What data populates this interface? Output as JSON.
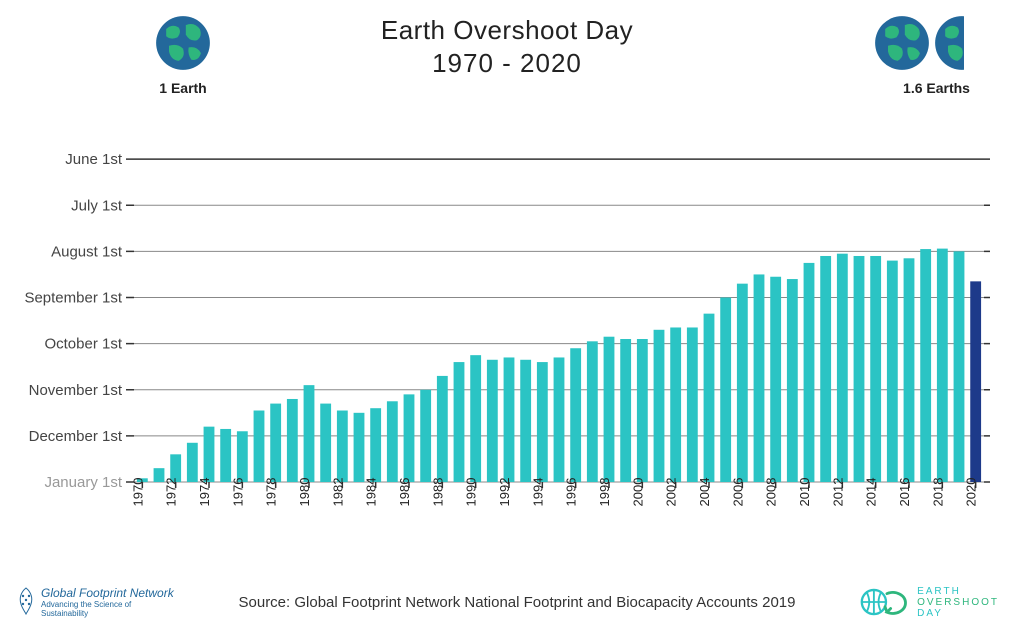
{
  "title": {
    "line1": "Earth Overshoot Day",
    "line2": "1970 - 2020"
  },
  "earthLabels": {
    "left": "1 Earth",
    "right": "1.6 Earths"
  },
  "source": "Source: Global Footprint Network National Footprint and Biocapacity Accounts 2019",
  "logoLeft": {
    "brand": "Global Footprint Network",
    "tag": "Advancing the Science of Sustainability"
  },
  "logoRight": {
    "l1": "EARTH",
    "l2": "OVERSHOOT",
    "l3": "DAY"
  },
  "chart": {
    "type": "bar",
    "background_color": "#ffffff",
    "grid_color": "#888888",
    "top_border_color": "#333333",
    "bar_color": "#2bc4c4",
    "bar_highlight_color": "#1d3a8a",
    "bar_width_ratio": 0.65,
    "y_axis": {
      "min": 0,
      "max": 8,
      "labels": [
        {
          "v": 0,
          "text": "January 1st"
        },
        {
          "v": 1,
          "text": "December 1st"
        },
        {
          "v": 2,
          "text": "November 1st"
        },
        {
          "v": 3,
          "text": "October 1st"
        },
        {
          "v": 4,
          "text": "September 1st"
        },
        {
          "v": 5,
          "text": "August 1st"
        },
        {
          "v": 6,
          "text": "July 1st"
        },
        {
          "v": 7,
          "text": "June 1st"
        }
      ],
      "label_fontsize": 15,
      "last_label_color": "#999999",
      "label_color": "#444444"
    },
    "x_axis": {
      "start": 1970,
      "end": 2020,
      "tick_step": 2,
      "label_fontsize": 13,
      "label_rotation": -90
    },
    "bars": [
      {
        "year": 1970,
        "value": 0.08,
        "highlight": false
      },
      {
        "year": 1971,
        "value": 0.3,
        "highlight": false
      },
      {
        "year": 1972,
        "value": 0.6,
        "highlight": false
      },
      {
        "year": 1973,
        "value": 0.85,
        "highlight": false
      },
      {
        "year": 1974,
        "value": 1.2,
        "highlight": false
      },
      {
        "year": 1975,
        "value": 1.15,
        "highlight": false
      },
      {
        "year": 1976,
        "value": 1.1,
        "highlight": false
      },
      {
        "year": 1977,
        "value": 1.55,
        "highlight": false
      },
      {
        "year": 1978,
        "value": 1.7,
        "highlight": false
      },
      {
        "year": 1979,
        "value": 1.8,
        "highlight": false
      },
      {
        "year": 1980,
        "value": 2.1,
        "highlight": false
      },
      {
        "year": 1981,
        "value": 1.7,
        "highlight": false
      },
      {
        "year": 1982,
        "value": 1.55,
        "highlight": false
      },
      {
        "year": 1983,
        "value": 1.5,
        "highlight": false
      },
      {
        "year": 1984,
        "value": 1.6,
        "highlight": false
      },
      {
        "year": 1985,
        "value": 1.75,
        "highlight": false
      },
      {
        "year": 1986,
        "value": 1.9,
        "highlight": false
      },
      {
        "year": 1987,
        "value": 2.0,
        "highlight": false
      },
      {
        "year": 1988,
        "value": 2.3,
        "highlight": false
      },
      {
        "year": 1989,
        "value": 2.6,
        "highlight": false
      },
      {
        "year": 1990,
        "value": 2.75,
        "highlight": false
      },
      {
        "year": 1991,
        "value": 2.65,
        "highlight": false
      },
      {
        "year": 1992,
        "value": 2.7,
        "highlight": false
      },
      {
        "year": 1993,
        "value": 2.65,
        "highlight": false
      },
      {
        "year": 1994,
        "value": 2.6,
        "highlight": false
      },
      {
        "year": 1995,
        "value": 2.7,
        "highlight": false
      },
      {
        "year": 1996,
        "value": 2.9,
        "highlight": false
      },
      {
        "year": 1997,
        "value": 3.05,
        "highlight": false
      },
      {
        "year": 1998,
        "value": 3.15,
        "highlight": false
      },
      {
        "year": 1999,
        "value": 3.1,
        "highlight": false
      },
      {
        "year": 2000,
        "value": 3.1,
        "highlight": false
      },
      {
        "year": 2001,
        "value": 3.3,
        "highlight": false
      },
      {
        "year": 2002,
        "value": 3.35,
        "highlight": false
      },
      {
        "year": 2003,
        "value": 3.35,
        "highlight": false
      },
      {
        "year": 2004,
        "value": 3.65,
        "highlight": false
      },
      {
        "year": 2005,
        "value": 4.0,
        "highlight": false
      },
      {
        "year": 2006,
        "value": 4.3,
        "highlight": false
      },
      {
        "year": 2007,
        "value": 4.5,
        "highlight": false
      },
      {
        "year": 2008,
        "value": 4.45,
        "highlight": false
      },
      {
        "year": 2009,
        "value": 4.4,
        "highlight": false
      },
      {
        "year": 2010,
        "value": 4.75,
        "highlight": false
      },
      {
        "year": 2011,
        "value": 4.9,
        "highlight": false
      },
      {
        "year": 2012,
        "value": 4.95,
        "highlight": false
      },
      {
        "year": 2013,
        "value": 4.9,
        "highlight": false
      },
      {
        "year": 2014,
        "value": 4.9,
        "highlight": false
      },
      {
        "year": 2015,
        "value": 4.8,
        "highlight": false
      },
      {
        "year": 2016,
        "value": 4.85,
        "highlight": false
      },
      {
        "year": 2017,
        "value": 5.05,
        "highlight": false
      },
      {
        "year": 2018,
        "value": 5.06,
        "highlight": false
      },
      {
        "year": 2019,
        "value": 5.0,
        "highlight": false
      },
      {
        "year": 2020,
        "value": 4.35,
        "highlight": true
      }
    ]
  },
  "globe": {
    "ocean": "#23689b",
    "land": "#2eb67d"
  }
}
